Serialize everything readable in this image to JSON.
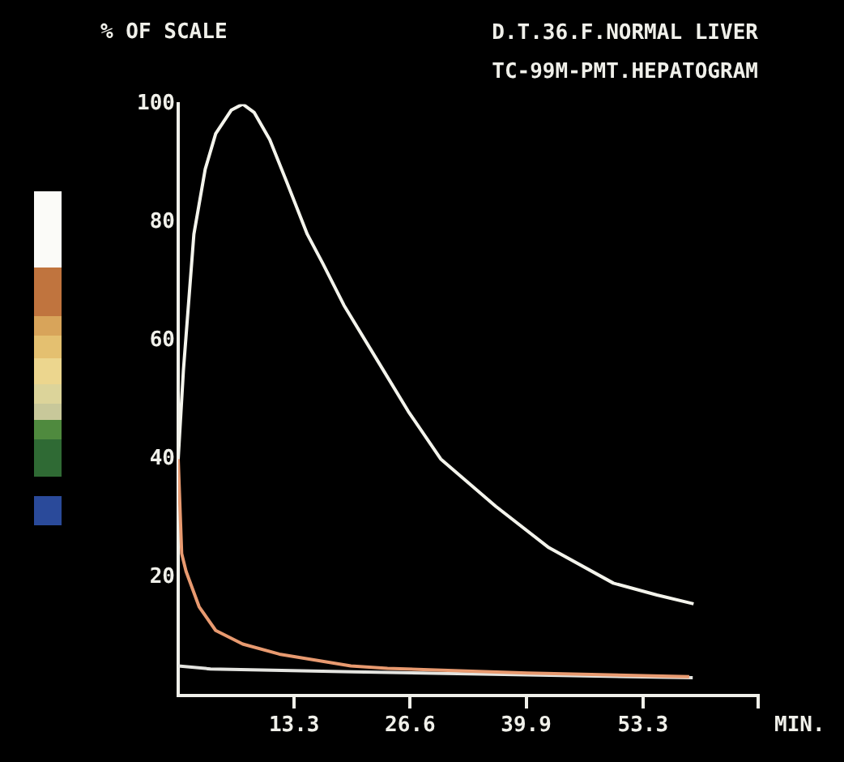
{
  "chart_data": {
    "type": "line",
    "title": "D.T.36.F.NORMAL LIVER",
    "subtitle": "TC-99M-PMT.HEPATOGRAM",
    "ylabel": "% OF SCALE",
    "xlabel": "MIN.",
    "series": [
      {
        "color": "#f4f4ec",
        "x": [
          0,
          0.6,
          1.8,
          3.1,
          4.3,
          6.1,
          7.4,
          8.7,
          10.5,
          12.4,
          14.8,
          16.6,
          19,
          22.7,
          26.4,
          30.1,
          36.4,
          42.5,
          49.9,
          54.9,
          59.1
        ],
        "values": [
          40,
          55,
          78,
          89,
          95,
          99,
          100,
          98.6,
          94,
          87,
          78,
          73,
          66,
          57,
          48,
          40,
          32,
          25,
          19,
          17,
          15.5
        ]
      },
      {
        "color": "#e89a70",
        "x": [
          0,
          0.4,
          0.9,
          2.4,
          4.3,
          7.4,
          11.6,
          19.8,
          24,
          40,
          58.6
        ],
        "values": [
          40,
          24,
          21,
          15,
          11,
          8.7,
          7,
          5,
          4.6,
          3.8,
          3.2
        ]
      },
      {
        "color": "#e4e4e0",
        "x": [
          0,
          3.7,
          20,
          40,
          59
        ],
        "values": [
          5,
          4.5,
          4,
          3.5,
          3
        ]
      }
    ],
    "xlim": [
      0,
      66.5
    ],
    "xticks": [
      13.3,
      26.6,
      39.9,
      53.3,
      {
        "value": 66.5,
        "label": null
      }
    ],
    "ylim": [
      0,
      100
    ],
    "yticks": [
      20,
      40,
      60,
      80,
      100
    ],
    "grid": false,
    "legend": false,
    "marker": "none",
    "line_style": "solid"
  }
}
